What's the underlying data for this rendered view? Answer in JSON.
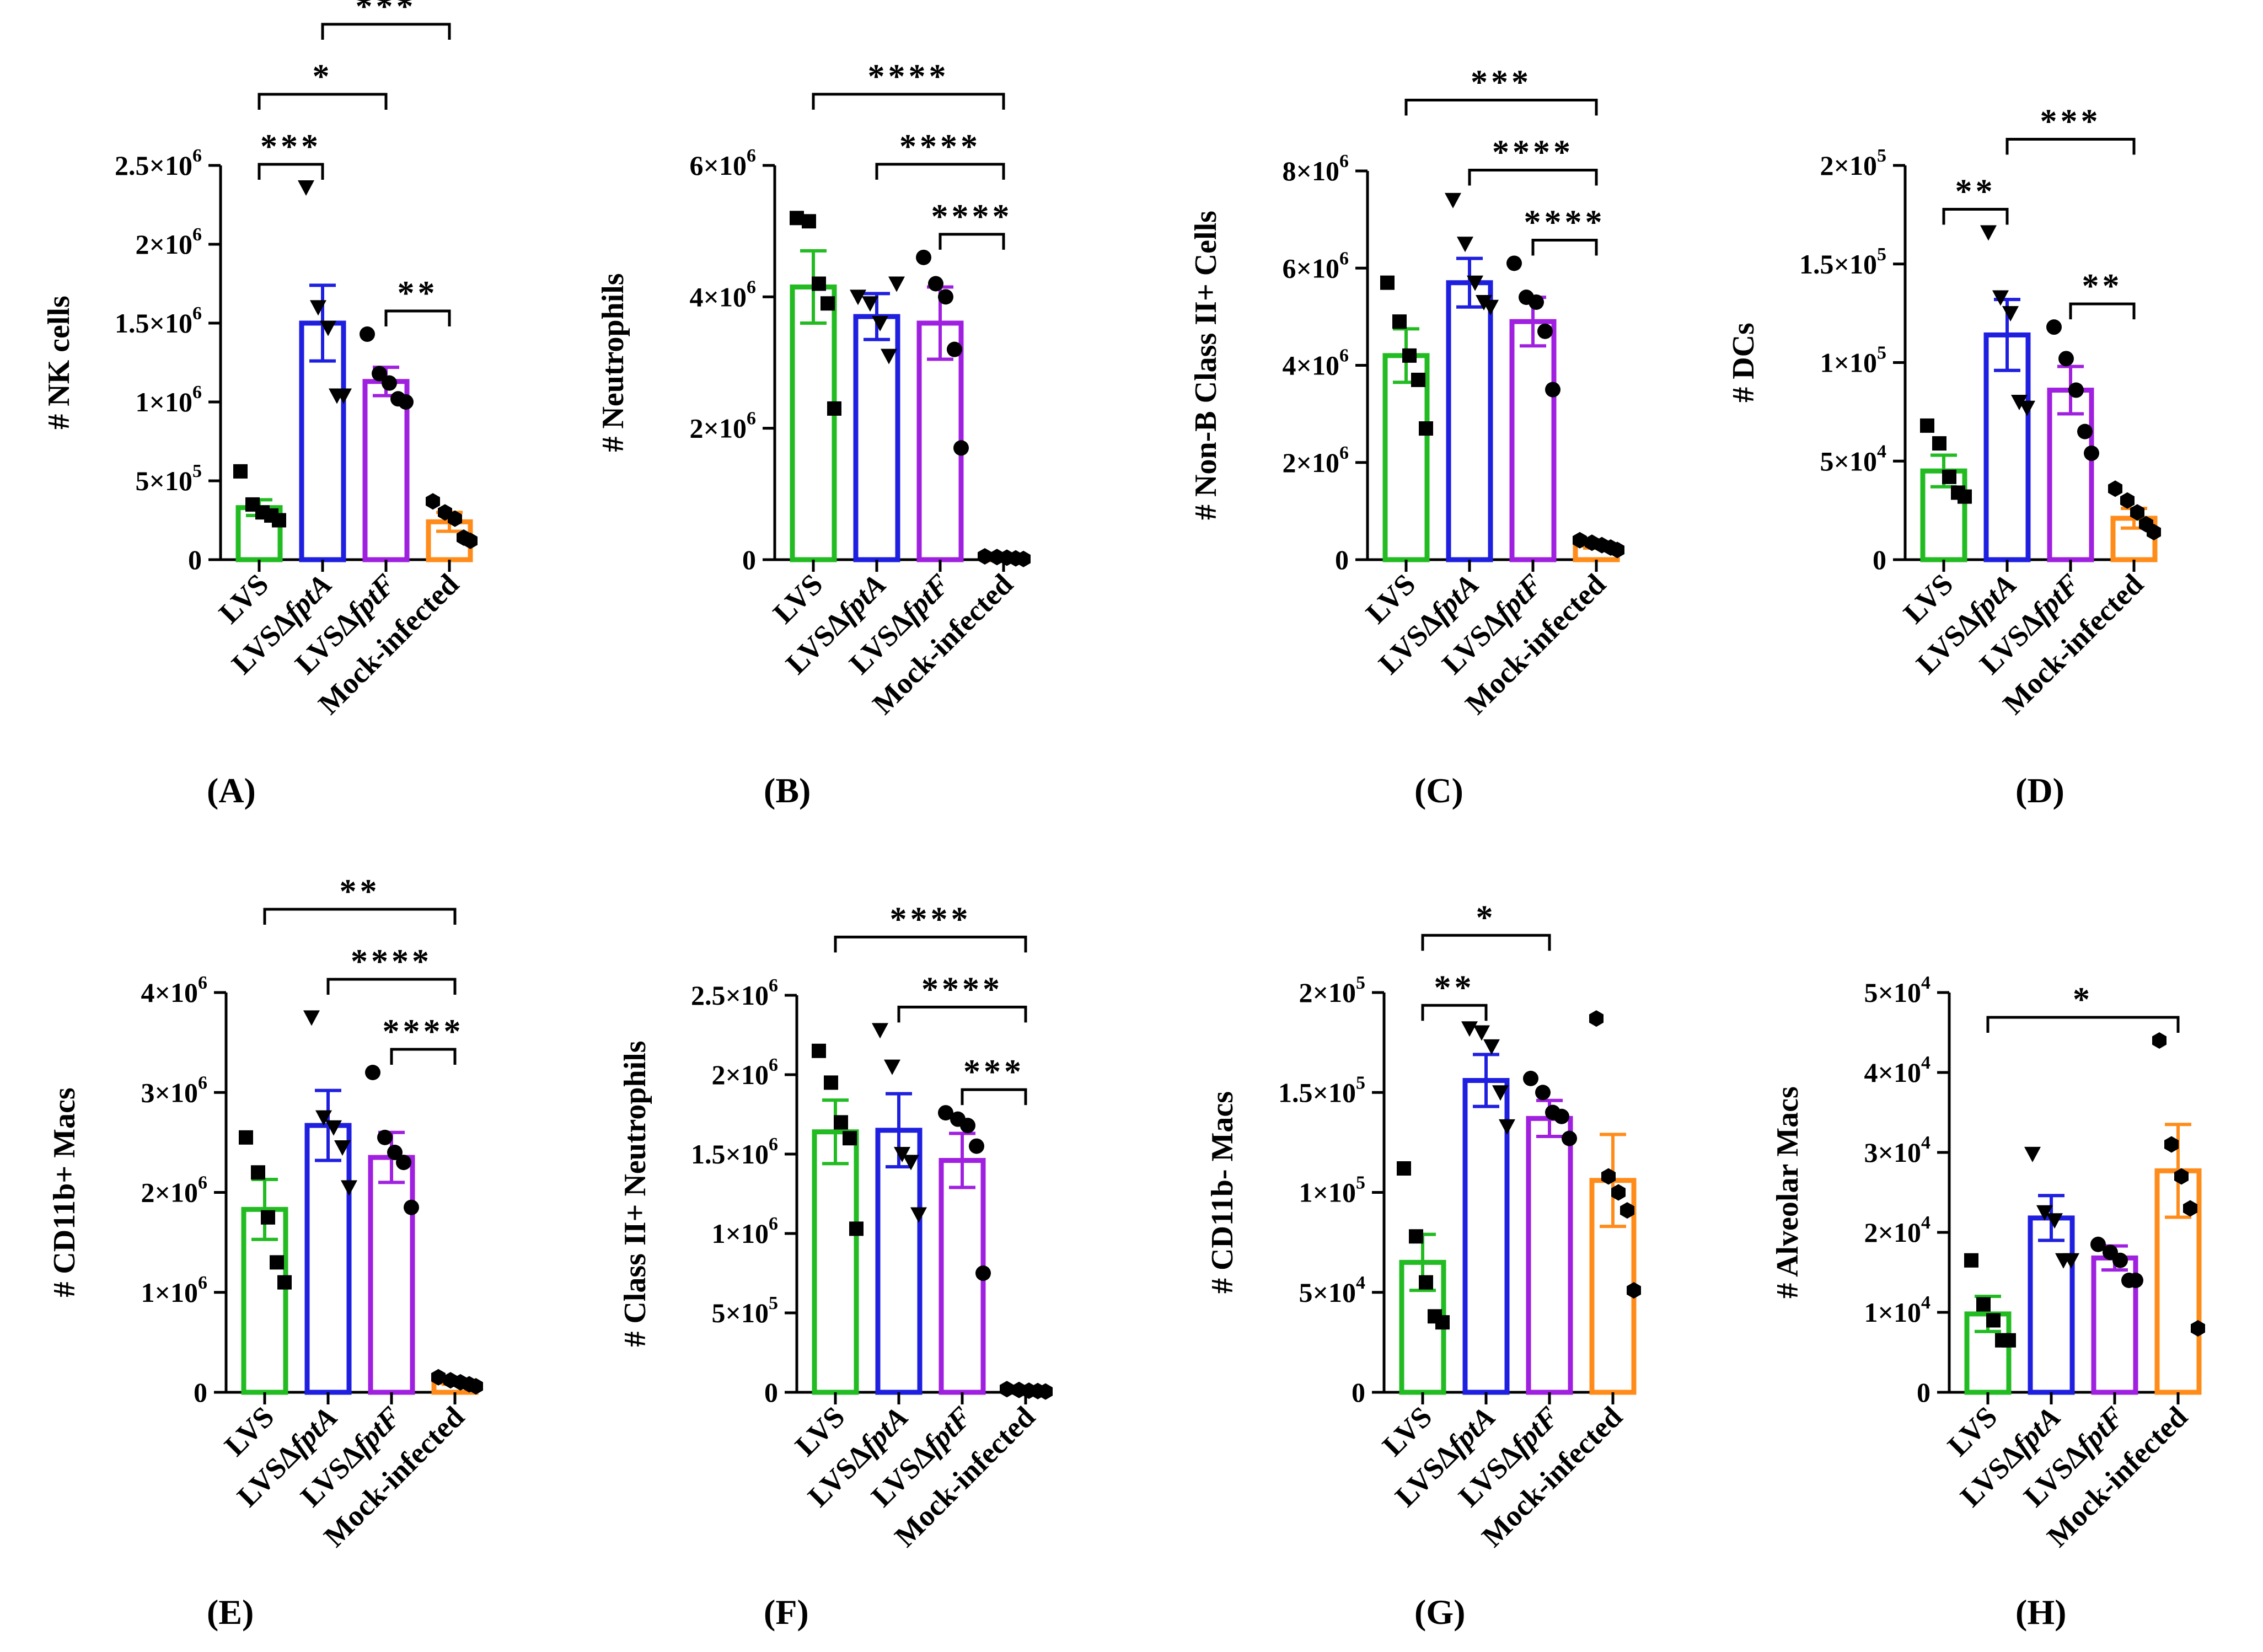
{
  "figure": {
    "panel_labels": [
      "(A)",
      "(B)",
      "(C)",
      "(D)",
      "(E)",
      "(F)",
      "(G)",
      "(H)"
    ],
    "groups": [
      "LVS",
      "LVSΔfptA",
      "LVSΔfptF",
      "Mock-infected"
    ],
    "group_parts": [
      [
        {
          "t": "LVS",
          "i": false
        }
      ],
      [
        {
          "t": "LVSΔ",
          "i": false
        },
        {
          "t": "fptA",
          "i": true
        }
      ],
      [
        {
          "t": "LVSΔ",
          "i": false
        },
        {
          "t": "fptF",
          "i": true
        }
      ],
      [
        {
          "t": "Mock-infected",
          "i": false
        }
      ]
    ],
    "colors": [
      "#22bb22",
      "#1f1fe0",
      "#a020e0",
      "#ff8c1a"
    ],
    "markers": [
      "square",
      "triangle-down",
      "circle",
      "hexagon"
    ],
    "marker_color": "#000000"
  },
  "chart_data": [
    {
      "type": "bar",
      "panel": "(A)",
      "ylabel": "# NK cells",
      "ylim": [
        0,
        2500000
      ],
      "ticks": [
        {
          "v": 0,
          "m": "0"
        },
        {
          "v": 500000,
          "m": "5×10",
          "e": "5"
        },
        {
          "v": 1000000,
          "m": "1×10",
          "e": "6"
        },
        {
          "v": 1500000,
          "m": "1.5×10",
          "e": "6"
        },
        {
          "v": 2000000,
          "m": "2×10",
          "e": "6"
        },
        {
          "v": 2500000,
          "m": "2.5×10",
          "e": "6"
        }
      ],
      "categories": [
        "LVS",
        "LVSΔfptA",
        "LVSΔfptF",
        "Mock-infected"
      ],
      "values": [
        330000,
        1500000,
        1130000,
        240000
      ],
      "errors": [
        50000,
        240000,
        90000,
        60000
      ],
      "points": [
        [
          560000,
          350000,
          300000,
          280000,
          250000
        ],
        [
          2360000,
          1600000,
          1470000,
          1040000,
          1040000
        ],
        [
          1430000,
          1180000,
          1120000,
          1020000,
          1000000
        ],
        [
          370000,
          300000,
          260000,
          140000,
          120000
        ]
      ],
      "sig": [
        {
          "a": 0,
          "b": 2,
          "label": "*"
        },
        {
          "a": 1,
          "b": 3,
          "label": "***"
        },
        {
          "a": 0,
          "b": 1,
          "label": "***"
        },
        {
          "a": 2,
          "b": 3,
          "label": "**"
        }
      ]
    },
    {
      "type": "bar",
      "panel": "(B)",
      "ylabel": "# Neutrophils",
      "ylim": [
        0,
        6000000
      ],
      "ticks": [
        {
          "v": 0,
          "m": "0"
        },
        {
          "v": 2000000,
          "m": "2×10",
          "e": "6"
        },
        {
          "v": 4000000,
          "m": "4×10",
          "e": "6"
        },
        {
          "v": 6000000,
          "m": "6×10",
          "e": "6"
        }
      ],
      "categories": [
        "LVS",
        "LVSΔfptA",
        "LVSΔfptF",
        "Mock-infected"
      ],
      "values": [
        4150000,
        3700000,
        3600000,
        30000
      ],
      "errors": [
        550000,
        350000,
        550000,
        10000
      ],
      "points": [
        [
          5200000,
          5150000,
          4200000,
          3900000,
          2300000
        ],
        [
          4000000,
          3900000,
          3600000,
          3100000,
          4200000
        ],
        [
          4600000,
          4200000,
          4000000,
          3200000,
          1700000
        ],
        [
          50000,
          40000,
          30000,
          20000,
          10000
        ]
      ],
      "sig": [
        {
          "a": 0,
          "b": 3,
          "label": "****"
        },
        {
          "a": 1,
          "b": 3,
          "label": "****"
        },
        {
          "a": 2,
          "b": 3,
          "label": "****"
        }
      ]
    },
    {
      "type": "bar",
      "panel": "(C)",
      "ylabel": "# Non-B Class II+ Cells",
      "ylim": [
        0,
        8000000
      ],
      "ticks": [
        {
          "v": 0,
          "m": "0"
        },
        {
          "v": 2000000,
          "m": "2×10",
          "e": "6"
        },
        {
          "v": 4000000,
          "m": "4×10",
          "e": "6"
        },
        {
          "v": 6000000,
          "m": "6×10",
          "e": "6"
        },
        {
          "v": 8000000,
          "m": "8×10",
          "e": "6"
        }
      ],
      "categories": [
        "LVS",
        "LVSΔfptA",
        "LVSΔfptF",
        "Mock-infected"
      ],
      "values": [
        4200000,
        5700000,
        4900000,
        300000
      ],
      "errors": [
        550000,
        500000,
        500000,
        60000
      ],
      "points": [
        [
          5700000,
          4900000,
          4200000,
          3700000,
          2700000
        ],
        [
          7400000,
          6500000,
          5700000,
          5300000,
          5200000
        ],
        [
          6100000,
          5400000,
          5300000,
          4700000,
          3500000
        ],
        [
          400000,
          350000,
          300000,
          250000,
          200000
        ]
      ],
      "sig": [
        {
          "a": 0,
          "b": 3,
          "label": "***"
        },
        {
          "a": 1,
          "b": 3,
          "label": "****"
        },
        {
          "a": 2,
          "b": 3,
          "label": "****"
        }
      ]
    },
    {
      "type": "bar",
      "panel": "(D)",
      "ylabel": "# DCs",
      "ylim": [
        0,
        200000
      ],
      "ticks": [
        {
          "v": 0,
          "m": "0"
        },
        {
          "v": 50000,
          "m": "5×10",
          "e": "4"
        },
        {
          "v": 100000,
          "m": "1×10",
          "e": "5"
        },
        {
          "v": 150000,
          "m": "1.5×10",
          "e": "5"
        },
        {
          "v": 200000,
          "m": "2×10",
          "e": "5"
        }
      ],
      "categories": [
        "LVS",
        "LVSΔfptA",
        "LVSΔfptF",
        "Mock-infected"
      ],
      "values": [
        45000,
        114000,
        86000,
        21000
      ],
      "errors": [
        8000,
        18000,
        12000,
        5000
      ],
      "points": [
        [
          68000,
          59000,
          42000,
          34000,
          32000
        ],
        [
          166000,
          133000,
          125000,
          80000,
          77000
        ],
        [
          118000,
          102000,
          86000,
          65000,
          54000
        ],
        [
          36000,
          30000,
          24000,
          18000,
          14000
        ]
      ],
      "sig": [
        {
          "a": 0,
          "b": 1,
          "label": "**"
        },
        {
          "a": 1,
          "b": 3,
          "label": "***"
        },
        {
          "a": 2,
          "b": 3,
          "label": "**"
        }
      ]
    },
    {
      "type": "bar",
      "panel": "(E)",
      "ylabel": "# CD11b+ Macs",
      "ylim": [
        0,
        4000000
      ],
      "ticks": [
        {
          "v": 0,
          "m": "0"
        },
        {
          "v": 1000000,
          "m": "1×10",
          "e": "6"
        },
        {
          "v": 2000000,
          "m": "2×10",
          "e": "6"
        },
        {
          "v": 3000000,
          "m": "3×10",
          "e": "6"
        },
        {
          "v": 4000000,
          "m": "4×10",
          "e": "6"
        }
      ],
      "categories": [
        "LVS",
        "LVSΔfptA",
        "LVSΔfptF",
        "Mock-infected"
      ],
      "values": [
        1830000,
        2670000,
        2350000,
        100000
      ],
      "errors": [
        300000,
        350000,
        250000,
        20000
      ],
      "points": [
        [
          2550000,
          2200000,
          1750000,
          1300000,
          1100000
        ],
        [
          3750000,
          2750000,
          2650000,
          2450000,
          2050000
        ],
        [
          3200000,
          2550000,
          2400000,
          2300000,
          1850000
        ],
        [
          150000,
          120000,
          100000,
          80000,
          60000
        ]
      ],
      "sig": [
        {
          "a": 0,
          "b": 3,
          "label": "**"
        },
        {
          "a": 1,
          "b": 3,
          "label": "****"
        },
        {
          "a": 2,
          "b": 3,
          "label": "****"
        }
      ]
    },
    {
      "type": "bar",
      "panel": "(F)",
      "ylabel": "# Class II+ Neutrophils",
      "ylim": [
        0,
        2500000
      ],
      "ticks": [
        {
          "v": 0,
          "m": "0"
        },
        {
          "v": 500000,
          "m": "5×10",
          "e": "5"
        },
        {
          "v": 1000000,
          "m": "1×10",
          "e": "6"
        },
        {
          "v": 1500000,
          "m": "1.5×10",
          "e": "6"
        },
        {
          "v": 2000000,
          "m": "2×10",
          "e": "6"
        },
        {
          "v": 2500000,
          "m": "2.5×10",
          "e": "6"
        }
      ],
      "categories": [
        "LVS",
        "LVSΔfptA",
        "LVSΔfptF",
        "Mock-infected"
      ],
      "values": [
        1640000,
        1650000,
        1460000,
        10000
      ],
      "errors": [
        200000,
        230000,
        170000,
        5000
      ],
      "points": [
        [
          2150000,
          1950000,
          1700000,
          1600000,
          1030000
        ],
        [
          2280000,
          2050000,
          1500000,
          1450000,
          1120000
        ],
        [
          1760000,
          1720000,
          1680000,
          1550000,
          750000
        ],
        [
          20000,
          15000,
          10000,
          8000,
          5000
        ]
      ],
      "sig": [
        {
          "a": 0,
          "b": 3,
          "label": "****"
        },
        {
          "a": 1,
          "b": 3,
          "label": "****"
        },
        {
          "a": 2,
          "b": 3,
          "label": "***"
        }
      ]
    },
    {
      "type": "bar",
      "panel": "(G)",
      "ylabel": "# CD11b- Macs",
      "ylim": [
        0,
        200000
      ],
      "ticks": [
        {
          "v": 0,
          "m": "0"
        },
        {
          "v": 50000,
          "m": "5×10",
          "e": "4"
        },
        {
          "v": 100000,
          "m": "1×10",
          "e": "5"
        },
        {
          "v": 150000,
          "m": "1.5×10",
          "e": "5"
        },
        {
          "v": 200000,
          "m": "2×10",
          "e": "5"
        }
      ],
      "categories": [
        "LVS",
        "LVSΔfptA",
        "LVSΔfptF",
        "Mock-infected"
      ],
      "values": [
        65000,
        156000,
        137000,
        106000
      ],
      "errors": [
        14000,
        13000,
        9000,
        23000
      ],
      "points": [
        [
          112000,
          78000,
          55000,
          38000,
          35000
        ],
        [
          182000,
          180000,
          173000,
          150000,
          133000
        ],
        [
          157000,
          150000,
          140000,
          138000,
          127000
        ],
        [
          187000,
          108000,
          100000,
          91000,
          51000
        ]
      ],
      "sig": [
        {
          "a": 0,
          "b": 2,
          "label": "*"
        },
        {
          "a": 0,
          "b": 1,
          "label": "**"
        }
      ]
    },
    {
      "type": "bar",
      "panel": "(H)",
      "ylabel": "# Alveolar Macs",
      "ylim": [
        0,
        50000
      ],
      "ticks": [
        {
          "v": 0,
          "m": "0"
        },
        {
          "v": 10000,
          "m": "1×10",
          "e": "4"
        },
        {
          "v": 20000,
          "m": "2×10",
          "e": "4"
        },
        {
          "v": 30000,
          "m": "3×10",
          "e": "4"
        },
        {
          "v": 40000,
          "m": "4×10",
          "e": "4"
        },
        {
          "v": 50000,
          "m": "5×10",
          "e": "4"
        }
      ],
      "categories": [
        "LVS",
        "LVSΔfptA",
        "LVSΔfptF",
        "Mock-infected"
      ],
      "values": [
        9800,
        21800,
        16800,
        27700
      ],
      "errors": [
        2200,
        2800,
        1500,
        5800
      ],
      "points": [
        [
          16500,
          11000,
          9000,
          6500,
          6500
        ],
        [
          29800,
          22500,
          21500,
          16500,
          16500
        ],
        [
          18500,
          17500,
          16500,
          14000,
          14000
        ],
        [
          44000,
          31000,
          27000,
          23000,
          8000
        ]
      ],
      "sig": [
        {
          "a": 0,
          "b": 3,
          "label": "*"
        }
      ]
    }
  ]
}
